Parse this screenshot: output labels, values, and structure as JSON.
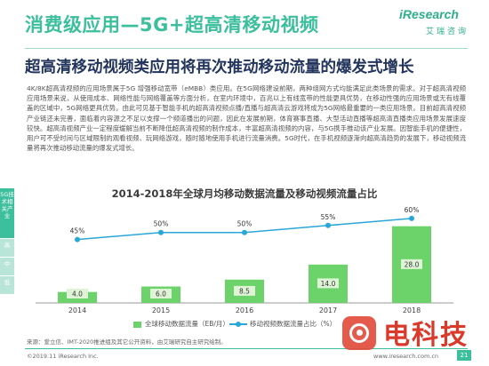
{
  "header": {
    "title": "消费级应用—5G+超高清移动视频",
    "subtitle": "超高清移动视频类应用将再次推动移动流量的爆发式增长"
  },
  "logo": {
    "brand": "iResearch",
    "tagline": "艾瑞咨询"
  },
  "body": {
    "paragraph": "4K/8K超高清视频的应用场景属于5G 增强移动宽带（eMBB）类应用。在5G网络建设前期，两种组网方式均能满足此类场景的需求。对于超高清视频应用场景来说，从使用成本、网络性能与网络覆盖等方面分析，在室内环境中，百兆以上有线宽带的性能更具优势，在移动性强的应用场景或无有线覆盖的区域中，5G网络更具优势。由此可见基于智能手机的超高清视频点播/直播与超高清云游戏将成为5G网络最重要的一类应用场景。目前超高清视频产业链还未完善，面临着内容源之不足以支撑一个频道播出的问题，因此在发展前期，体育赛事直播、大型活动直播等超高清直播类应用场景发展速度较快。超高清视频产业一定程度缓解当前不断降低超高清视频的制作成本，丰富超高清视频的内容，与5G携手推动该产业发展。因智能手机的便捷性，用户可不受时间与区域限制的观看视频、玩网络游戏，随时随地使用手机进行流量消费。5G时代，在手机视频逐渐向超高清趋势的发展下，移动视频流量将再次推动移动流量的爆发式增长。"
  },
  "side_tabs": [
    "5G技术相关产业",
    "高",
    "中",
    "低"
  ],
  "chart_data": {
    "type": "bar",
    "title": "2014-2018年全球月均移动数据流量及移动视频流量占比",
    "categories": [
      "2014",
      "2015",
      "2016",
      "2017",
      "2018"
    ],
    "series": [
      {
        "name": "全球移动数据流量（EB/月）",
        "type": "bar",
        "values": [
          4.0,
          6.0,
          8.5,
          14.0,
          28.0
        ]
      },
      {
        "name": "移动视频数据流量占比（%）",
        "type": "line",
        "values": [
          45,
          50,
          50,
          55,
          60
        ]
      }
    ],
    "bar_labels": [
      "4.0",
      "6.0",
      "8.5",
      "14.0",
      "28.0"
    ],
    "line_labels": [
      "45%",
      "50%",
      "50%",
      "55%",
      "60%"
    ],
    "ylim_bar": [
      0,
      36
    ],
    "ylim_line": [
      0,
      70
    ],
    "grid": false,
    "legend_position": "bottom",
    "colors": {
      "bar": "#6bd36a",
      "line": "#29a7d6",
      "bar_label_bg": "#dff3d6"
    }
  },
  "footer": {
    "source": "来源：爱立信、IMT-2020推进组及其它公开资料，由艾瑞研究自主研究绘制。",
    "copyright": "©2019.11 iResearch Inc.",
    "website": "www.iresearch.com.cn",
    "page": "21"
  },
  "watermark": {
    "text": "电科技"
  }
}
